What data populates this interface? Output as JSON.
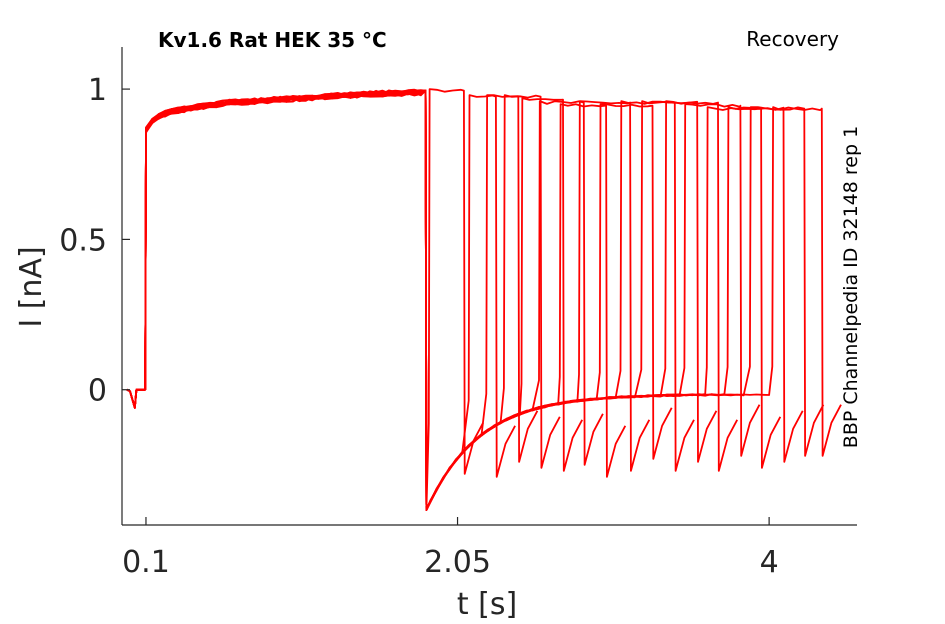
{
  "chart_data": {
    "type": "line",
    "title": "Kv1.6  Rat  HEK  35 °C",
    "protocol": "Recovery",
    "source": "BBP Channelpedia ID 32148 rep 1",
    "xlabel": "t [s]",
    "ylabel": "I [nA]",
    "xlim": [
      -0.05,
      4.55
    ],
    "ylim": [
      -0.45,
      1.14
    ],
    "x_ticks": [
      0.1,
      2.05,
      4
    ],
    "x_tick_labels": [
      "0.1",
      "2.05",
      "4"
    ],
    "y_ticks": [
      0,
      0.5,
      1
    ],
    "y_tick_labels": [
      "0",
      "0.5",
      "1"
    ],
    "grid": false,
    "legend": "none",
    "trace_color": "#ff0000",
    "conditioning_pulse": {
      "start": 0.1,
      "end": 1.85,
      "values": [
        [
          0.1,
          0.87
        ],
        [
          0.15,
          0.91
        ],
        [
          0.25,
          0.93
        ],
        [
          0.4,
          0.945
        ],
        [
          0.6,
          0.96
        ],
        [
          0.9,
          0.97
        ],
        [
          1.2,
          0.98
        ],
        [
          1.5,
          0.99
        ],
        [
          1.85,
          0.995
        ]
      ]
    },
    "recovery_sweeps": [
      {
        "step_start": 1.87,
        "step_end": 2.09,
        "peak": 1.0,
        "tail_min": -0.28
      },
      {
        "step_start": 2.12,
        "step_end": 2.29,
        "peak": 0.98,
        "tail_min": -0.29
      },
      {
        "step_start": 2.23,
        "step_end": 2.43,
        "peak": 0.98,
        "tail_min": -0.24
      },
      {
        "step_start": 2.34,
        "step_end": 2.57,
        "peak": 0.98,
        "tail_min": -0.26
      },
      {
        "step_start": 2.45,
        "step_end": 2.71,
        "peak": 0.97,
        "tail_min": -0.27
      },
      {
        "step_start": 2.56,
        "step_end": 2.84,
        "peak": 0.96,
        "tail_min": -0.25
      },
      {
        "step_start": 2.69,
        "step_end": 2.98,
        "peak": 0.95,
        "tail_min": -0.29
      },
      {
        "step_start": 2.81,
        "step_end": 3.13,
        "peak": 0.96,
        "tail_min": -0.27
      },
      {
        "step_start": 2.94,
        "step_end": 3.27,
        "peak": 0.95,
        "tail_min": -0.23
      },
      {
        "step_start": 3.07,
        "step_end": 3.41,
        "peak": 0.96,
        "tail_min": -0.27
      },
      {
        "step_start": 3.2,
        "step_end": 3.55,
        "peak": 0.96,
        "tail_min": -0.24
      },
      {
        "step_start": 3.35,
        "step_end": 3.68,
        "peak": 0.96,
        "tail_min": -0.27
      },
      {
        "step_start": 3.47,
        "step_end": 3.82,
        "peak": 0.95,
        "tail_min": -0.22
      },
      {
        "step_start": 3.61,
        "step_end": 3.95,
        "peak": 0.94,
        "tail_min": -0.26
      },
      {
        "step_start": 3.74,
        "step_end": 4.09,
        "peak": 0.94,
        "tail_min": -0.24
      },
      {
        "step_start": 3.88,
        "step_end": 4.22,
        "peak": 0.94,
        "tail_min": -0.22
      },
      {
        "step_start": 4.02,
        "step_end": 4.33,
        "peak": 0.94,
        "tail_min": -0.22
      }
    ]
  }
}
